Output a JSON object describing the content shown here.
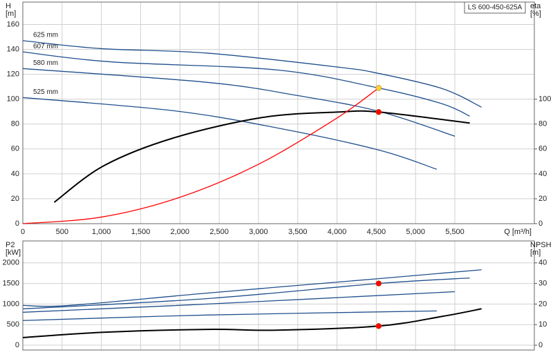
{
  "chart_data": [
    {
      "type": "line",
      "y_label": "H",
      "y_unit": "[m]",
      "y2_label": "eta",
      "y2_unit": "[%]",
      "x_label": "Q [m³/h]",
      "annotation": "LS 600-450-625A",
      "xlim": [
        0,
        6512
      ],
      "ylim": [
        0,
        178
      ],
      "y2lim": [
        0,
        178
      ],
      "xticks": [
        0,
        500,
        {
          "value": 1000,
          "label": "1,000"
        },
        {
          "value": 1500,
          "label": "1,500"
        },
        {
          "value": 2000,
          "label": "2,000"
        },
        {
          "value": 2500,
          "label": "2,500"
        },
        {
          "value": 3000,
          "label": "3,000"
        },
        {
          "value": 3500,
          "label": "3,500"
        },
        {
          "value": 4000,
          "label": "4,000"
        },
        {
          "value": 4500,
          "label": "4,500"
        },
        {
          "value": 5000,
          "label": "5,000"
        },
        {
          "value": 5500,
          "label": "5,500"
        }
      ],
      "yticks": [
        0,
        20,
        40,
        60,
        80,
        100,
        120,
        140,
        160
      ],
      "y2ticks": [
        0,
        20,
        40,
        60,
        80,
        100
      ],
      "grid": true,
      "series": [
        {
          "name": "625 mm",
          "color": "#1f4e8c",
          "x": [
            0,
            1000,
            2350,
            4020,
            4530,
            5340,
            5840
          ],
          "values": [
            147,
            140.6,
            137,
            125.7,
            120.7,
            108.5,
            93.6
          ]
        },
        {
          "name": "607 mm",
          "color": "#1f4e8c",
          "x": [
            0,
            1120,
            3230,
            4530,
            5340,
            5690
          ],
          "values": [
            138,
            130,
            123.5,
            109,
            96.3,
            86.4
          ]
        },
        {
          "name": "580 mm",
          "color": "#1f4e8c",
          "x": [
            0,
            2350,
            3490,
            4530,
            5500
          ],
          "values": [
            124.6,
            113.5,
            103,
            90.3,
            70.3
          ]
        },
        {
          "name": "525 mm",
          "color": "#1f4e8c",
          "x": [
            0,
            1910,
            3230,
            4530,
            5270
          ],
          "values": [
            101.3,
            90.8,
            77,
            59.2,
            43.7
          ]
        },
        {
          "color": "#000000",
          "axis": "y2",
          "x": [
            400,
            1030,
            1910,
            3050,
            4020,
            4530,
            5690
          ],
          "values": [
            17.2,
            46.5,
            68.7,
            85.3,
            89.7,
            89.7,
            80.8
          ]
        },
        {
          "color": "#ff0000",
          "x": [
            0,
            1000,
            2000,
            3000,
            4000,
            4530
          ],
          "values": [
            0,
            5.3,
            21.2,
            47.7,
            84.9,
            109
          ]
        }
      ],
      "markers": [
        {
          "x": 4530,
          "value": 109,
          "color": "#ffd040"
        },
        {
          "x": 4530,
          "value": 89.7,
          "axis": "y2",
          "color": "#ff0000"
        }
      ]
    },
    {
      "type": "line",
      "y_label": "P2",
      "y_unit": "[kW]",
      "y2_label": "NPSH",
      "y2_unit": "[m]",
      "xlim": [
        0,
        6512
      ],
      "ylim": [
        -117,
        2533
      ],
      "y2lim": [
        -2.34,
        50.66
      ],
      "yticks": [
        0,
        500,
        1000,
        1500,
        2000
      ],
      "y2ticks": [
        0,
        10,
        20,
        30,
        40
      ],
      "grid": true,
      "series": [
        {
          "color": "#1f4e8c",
          "x": [
            0,
            590,
            2350,
            4530,
            5840
          ],
          "values": [
            967,
            967,
            1267,
            1617,
            1833
          ]
        },
        {
          "color": "#1f4e8c",
          "x": [
            0,
            2350,
            4530,
            5690
          ],
          "values": [
            883,
            1133,
            1500,
            1633
          ]
        },
        {
          "color": "#1f4e8c",
          "x": [
            0,
            2350,
            5500
          ],
          "values": [
            800,
            1000,
            1300
          ]
        },
        {
          "color": "#1f4e8c",
          "x": [
            0,
            2350,
            5270
          ],
          "values": [
            600,
            733,
            833
          ]
        },
        {
          "color": "#000000",
          "axis": "y2",
          "x": [
            0,
            1030,
            2350,
            3230,
            4530,
            5340,
            5840
          ],
          "values": [
            3.7,
            6.3,
            7.7,
            7.3,
            9.3,
            14,
            17.7
          ]
        }
      ],
      "markers": [
        {
          "x": 4530,
          "value": 1500,
          "color": "#ff0000"
        },
        {
          "x": 4530,
          "value": 9.3,
          "axis": "y2",
          "color": "#ff0000"
        }
      ]
    }
  ]
}
